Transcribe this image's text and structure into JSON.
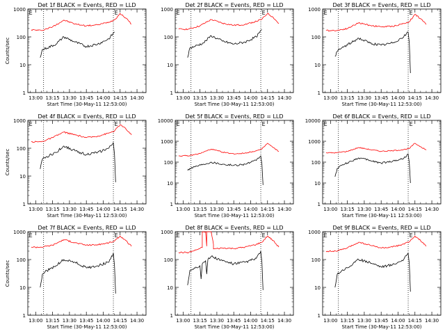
{
  "chart_data": [
    {
      "type": "line",
      "title": "Det 1f BLACK = Events, RED = LLD",
      "xlabel": "Start Time (30-May-11 12:53:00)",
      "ylabel": "Counts/sec",
      "xlim": [
        "12:53",
        "14:38"
      ],
      "ylim": [
        1,
        1000
      ],
      "yscale": "log",
      "x_ticks": [
        "13:00",
        "13:15",
        "13:30",
        "13:45",
        "14:00",
        "14:15",
        "14:30"
      ],
      "y_ticks": [
        "1",
        "10",
        "100",
        "1000"
      ],
      "vlines": [
        "13:07",
        "14:09"
      ],
      "markers": [
        {
          "label": "E",
          "x": "12:54"
        },
        {
          "label": "E",
          "x": "14:10"
        }
      ],
      "series": [
        {
          "color": "#ff0000",
          "x": [
            "12:56",
            "13:05",
            "13:15",
            "13:25",
            "13:35",
            "13:45",
            "13:55",
            "14:05",
            "14:10",
            "14:15",
            "14:20",
            "14:25"
          ],
          "values": [
            180,
            170,
            230,
            400,
            290,
            250,
            270,
            340,
            410,
            690,
            480,
            290
          ]
        },
        {
          "color": "#000000",
          "x": [
            "13:04",
            "13:06",
            "13:10",
            "13:18",
            "13:25",
            "13:35",
            "13:45",
            "13:55",
            "14:05",
            "14:10"
          ],
          "values": [
            18,
            35,
            40,
            55,
            100,
            65,
            45,
            55,
            85,
            150
          ]
        }
      ]
    },
    {
      "type": "line",
      "title": "Det 2f BLACK = Events, RED = LLD",
      "xlabel": "Start Time (30-May-11 12:53:00)",
      "ylabel": "",
      "xlim": [
        "12:53",
        "14:38"
      ],
      "ylim": [
        1,
        1000
      ],
      "yscale": "log",
      "x_ticks": [
        "13:00",
        "13:15",
        "13:30",
        "13:45",
        "14:00",
        "14:15",
        "14:30"
      ],
      "y_ticks": [
        "1",
        "10",
        "100",
        "1000"
      ],
      "vlines": [
        "13:07",
        "14:09"
      ],
      "markers": [
        {
          "label": "E",
          "x": "12:54"
        },
        {
          "label": "E",
          "x": "14:10"
        }
      ],
      "series": [
        {
          "color": "#ff0000",
          "x": [
            "12:56",
            "13:05",
            "13:15",
            "13:25",
            "13:35",
            "13:45",
            "13:55",
            "14:05",
            "14:10",
            "14:15",
            "14:20",
            "14:25"
          ],
          "values": [
            190,
            190,
            250,
            420,
            310,
            260,
            280,
            360,
            430,
            700,
            500,
            300
          ]
        },
        {
          "color": "#000000",
          "x": [
            "13:04",
            "13:06",
            "13:10",
            "13:18",
            "13:25",
            "13:35",
            "13:45",
            "13:55",
            "14:05",
            "14:10"
          ],
          "values": [
            18,
            40,
            45,
            60,
            110,
            70,
            55,
            65,
            100,
            180
          ]
        }
      ]
    },
    {
      "type": "line",
      "title": "Det 3f BLACK = Events, RED = LLD",
      "xlabel": "Start Time (30-May-11 12:53:00)",
      "ylabel": "",
      "xlim": [
        "12:53",
        "14:38"
      ],
      "ylim": [
        1,
        1000
      ],
      "yscale": "log",
      "x_ticks": [
        "13:00",
        "13:15",
        "13:30",
        "13:45",
        "14:00",
        "14:15",
        "14:30"
      ],
      "y_ticks": [
        "1",
        "10",
        "100",
        "1000"
      ],
      "vlines": [
        "13:07",
        "14:09"
      ],
      "markers": [
        {
          "label": "E",
          "x": "12:54"
        },
        {
          "label": "E",
          "x": "14:10"
        }
      ],
      "series": [
        {
          "color": "#ff0000",
          "x": [
            "12:56",
            "13:05",
            "13:15",
            "13:25",
            "13:35",
            "13:45",
            "13:55",
            "14:05",
            "14:10",
            "14:15",
            "14:20",
            "14:25"
          ],
          "values": [
            170,
            170,
            200,
            320,
            260,
            230,
            240,
            300,
            350,
            650,
            450,
            280
          ]
        },
        {
          "color": "#000000",
          "x": [
            "13:04",
            "13:06",
            "13:10",
            "13:18",
            "13:25",
            "13:35",
            "13:45",
            "13:55",
            "14:05",
            "14:09",
            "14:10",
            "14:11"
          ],
          "values": [
            20,
            30,
            40,
            60,
            90,
            60,
            50,
            60,
            100,
            150,
            60,
            5
          ]
        }
      ]
    },
    {
      "type": "line",
      "title": "Det 4f BLACK = Events, RED = LLD",
      "xlabel": "Start Time (30-May-11 12:53:00)",
      "ylabel": "Counts/sec",
      "xlim": [
        "12:53",
        "14:38"
      ],
      "ylim": [
        1,
        1000
      ],
      "yscale": "log",
      "x_ticks": [
        "13:00",
        "13:15",
        "13:30",
        "13:45",
        "14:00",
        "14:15",
        "14:30"
      ],
      "y_ticks": [
        "1",
        "10",
        "100",
        "1000"
      ],
      "vlines": [
        "13:07",
        "14:09"
      ],
      "markers": [
        {
          "label": "E",
          "x": "12:54"
        },
        {
          "label": "E",
          "x": "14:10"
        }
      ],
      "series": [
        {
          "color": "#ff0000",
          "x": [
            "12:56",
            "13:05",
            "13:15",
            "13:25",
            "13:35",
            "13:45",
            "13:55",
            "14:05",
            "14:10",
            "14:15",
            "14:20",
            "14:25"
          ],
          "values": [
            170,
            170,
            240,
            380,
            300,
            240,
            270,
            350,
            420,
            700,
            500,
            300
          ]
        },
        {
          "color": "#000000",
          "x": [
            "13:04",
            "13:06",
            "13:10",
            "13:18",
            "13:25",
            "13:35",
            "13:45",
            "13:55",
            "14:05",
            "14:09",
            "14:10",
            "14:11"
          ],
          "values": [
            18,
            40,
            50,
            70,
            120,
            80,
            60,
            70,
            100,
            160,
            60,
            6
          ]
        }
      ]
    },
    {
      "type": "line",
      "title": "Det 5f BLACK = Events, RED = LLD",
      "xlabel": "Start Time (30-May-11 12:53:00)",
      "ylabel": "",
      "xlim": [
        "12:53",
        "14:38"
      ],
      "ylim": [
        1,
        10000
      ],
      "yscale": "log",
      "x_ticks": [
        "13:00",
        "13:15",
        "13:30",
        "13:45",
        "14:00",
        "14:15",
        "14:30"
      ],
      "y_ticks": [
        "1",
        "10",
        "100",
        "1000",
        "10000"
      ],
      "vlines": [
        "13:07",
        "14:09"
      ],
      "markers": [
        {
          "label": "E",
          "x": "12:54"
        },
        {
          "label": "E",
          "x": "14:10"
        }
      ],
      "series": [
        {
          "color": "#ff0000",
          "x": [
            "12:56",
            "13:05",
            "13:15",
            "13:25",
            "13:35",
            "13:45",
            "13:55",
            "14:05",
            "14:10",
            "14:15",
            "14:20",
            "14:25"
          ],
          "values": [
            200,
            200,
            260,
            420,
            300,
            250,
            270,
            350,
            420,
            800,
            500,
            320
          ]
        },
        {
          "color": "#000000",
          "x": [
            "13:04",
            "13:06",
            "13:10",
            "13:18",
            "13:25",
            "13:35",
            "13:45",
            "13:55",
            "14:05",
            "14:09",
            "14:10",
            "14:11"
          ],
          "values": [
            40,
            50,
            60,
            80,
            100,
            80,
            70,
            80,
            120,
            200,
            80,
            8
          ]
        }
      ]
    },
    {
      "type": "line",
      "title": "Det 6f BLACK = Events, RED = LLD",
      "xlabel": "Start Time (30-May-11 12:53:00)",
      "ylabel": "",
      "xlim": [
        "12:53",
        "14:38"
      ],
      "ylim": [
        1,
        10000
      ],
      "yscale": "log",
      "x_ticks": [
        "13:00",
        "13:15",
        "13:30",
        "13:45",
        "14:00",
        "14:15",
        "14:30"
      ],
      "y_ticks": [
        "1",
        "10",
        "100",
        "1000",
        "10000"
      ],
      "vlines": [
        "13:07",
        "14:09"
      ],
      "markers": [
        {
          "label": "E",
          "x": "12:54"
        },
        {
          "label": "E",
          "x": "14:10"
        }
      ],
      "series": [
        {
          "color": "#ff0000",
          "x": [
            "12:56",
            "13:05",
            "13:15",
            "13:25",
            "13:35",
            "13:45",
            "13:55",
            "14:05",
            "14:10",
            "14:15",
            "14:20",
            "14:25"
          ],
          "values": [
            280,
            280,
            330,
            500,
            400,
            330,
            350,
            400,
            450,
            800,
            550,
            380
          ]
        },
        {
          "color": "#000000",
          "x": [
            "13:04",
            "13:06",
            "13:10",
            "13:18",
            "13:25",
            "13:35",
            "13:45",
            "13:55",
            "14:05",
            "14:09",
            "14:10",
            "14:11"
          ],
          "values": [
            20,
            50,
            70,
            110,
            160,
            120,
            90,
            110,
            150,
            250,
            90,
            10
          ]
        }
      ]
    },
    {
      "type": "line",
      "title": "Det 7f BLACK = Events, RED = LLD",
      "xlabel": "Start Time (30-May-11 12:53:00)",
      "ylabel": "Counts/sec",
      "xlim": [
        "12:53",
        "14:38"
      ],
      "ylim": [
        1,
        1000
      ],
      "yscale": "log",
      "x_ticks": [
        "13:00",
        "13:15",
        "13:30",
        "13:45",
        "14:00",
        "14:15",
        "14:30"
      ],
      "y_ticks": [
        "1",
        "10",
        "100",
        "1000"
      ],
      "vlines": [
        "13:07",
        "14:09"
      ],
      "markers": [
        {
          "label": "E",
          "x": "12:54"
        },
        {
          "label": "E",
          "x": "14:10"
        }
      ],
      "series": [
        {
          "color": "#ff0000",
          "x": [
            "12:56",
            "13:05",
            "13:15",
            "13:25",
            "13:35",
            "13:45",
            "13:55",
            "14:05",
            "14:10",
            "14:15",
            "14:20",
            "14:25"
          ],
          "values": [
            280,
            280,
            330,
            520,
            400,
            330,
            340,
            400,
            460,
            700,
            480,
            300
          ]
        },
        {
          "color": "#000000",
          "x": [
            "13:04",
            "13:06",
            "13:10",
            "13:18",
            "13:25",
            "13:35",
            "13:45",
            "13:55",
            "14:05",
            "14:09",
            "14:10",
            "14:11"
          ],
          "values": [
            10,
            30,
            40,
            60,
            100,
            80,
            50,
            60,
            80,
            170,
            60,
            6
          ]
        }
      ]
    },
    {
      "type": "line",
      "title": "Det 8f BLACK = Events, RED = LLD",
      "xlabel": "Start Time (30-May-11 12:53:00)",
      "ylabel": "",
      "xlim": [
        "12:53",
        "14:38"
      ],
      "ylim": [
        1,
        1000
      ],
      "yscale": "log",
      "x_ticks": [
        "13:00",
        "13:15",
        "13:30",
        "13:45",
        "14:00",
        "14:15",
        "14:30"
      ],
      "y_ticks": [
        "1",
        "10",
        "100",
        "1000"
      ],
      "vlines": [
        "13:07",
        "14:09"
      ],
      "markers": [
        {
          "label": "E",
          "x": "12:54"
        },
        {
          "label": "E",
          "x": "14:10"
        }
      ],
      "series": [
        {
          "color": "#ff0000",
          "x": [
            "12:56",
            "13:05",
            "13:10",
            "13:15",
            "13:17",
            "13:17",
            "13:20",
            "13:21",
            "13:21",
            "13:25",
            "13:27",
            "13:27",
            "13:35",
            "13:45",
            "13:55",
            "14:05",
            "14:10",
            "14:15",
            "14:20",
            "14:25"
          ],
          "values": [
            180,
            180,
            210,
            250,
            270,
            1000,
            1000,
            300,
            1000,
            1000,
            350,
            240,
            260,
            250,
            280,
            350,
            420,
            700,
            480,
            280
          ]
        },
        {
          "color": "#000000",
          "x": [
            "13:04",
            "13:06",
            "13:10",
            "13:15",
            "13:16",
            "13:17",
            "13:20",
            "13:21",
            "13:22",
            "13:25",
            "13:35",
            "13:45",
            "13:55",
            "14:05",
            "14:09",
            "14:10",
            "14:11"
          ],
          "values": [
            12,
            40,
            50,
            60,
            20,
            70,
            90,
            30,
            100,
            130,
            90,
            70,
            80,
            110,
            200,
            80,
            8
          ]
        }
      ]
    },
    {
      "type": "line",
      "title": "Det 9f BLACK = Events, RED = LLD",
      "xlabel": "Start Time (30-May-11 12:53:00)",
      "ylabel": "",
      "xlim": [
        "12:53",
        "14:38"
      ],
      "ylim": [
        1,
        1000
      ],
      "yscale": "log",
      "x_ticks": [
        "13:00",
        "13:15",
        "13:30",
        "13:45",
        "14:00",
        "14:15",
        "14:30"
      ],
      "y_ticks": [
        "1",
        "10",
        "100",
        "1000"
      ],
      "vlines": [
        "13:07",
        "14:09"
      ],
      "markers": [
        {
          "label": "E",
          "x": "12:54"
        },
        {
          "label": "E",
          "x": "14:10"
        }
      ],
      "series": [
        {
          "color": "#ff0000",
          "x": [
            "12:56",
            "13:05",
            "13:15",
            "13:25",
            "13:35",
            "13:45",
            "13:55",
            "14:05",
            "14:10",
            "14:15",
            "14:20",
            "14:25"
          ],
          "values": [
            200,
            200,
            260,
            420,
            330,
            260,
            280,
            360,
            430,
            700,
            480,
            300
          ]
        },
        {
          "color": "#000000",
          "x": [
            "13:04",
            "13:06",
            "13:10",
            "13:18",
            "13:25",
            "13:35",
            "13:45",
            "13:55",
            "14:05",
            "14:09",
            "14:10",
            "14:11"
          ],
          "values": [
            10,
            30,
            40,
            60,
            100,
            80,
            55,
            65,
            100,
            170,
            70,
            7
          ]
        }
      ]
    }
  ]
}
